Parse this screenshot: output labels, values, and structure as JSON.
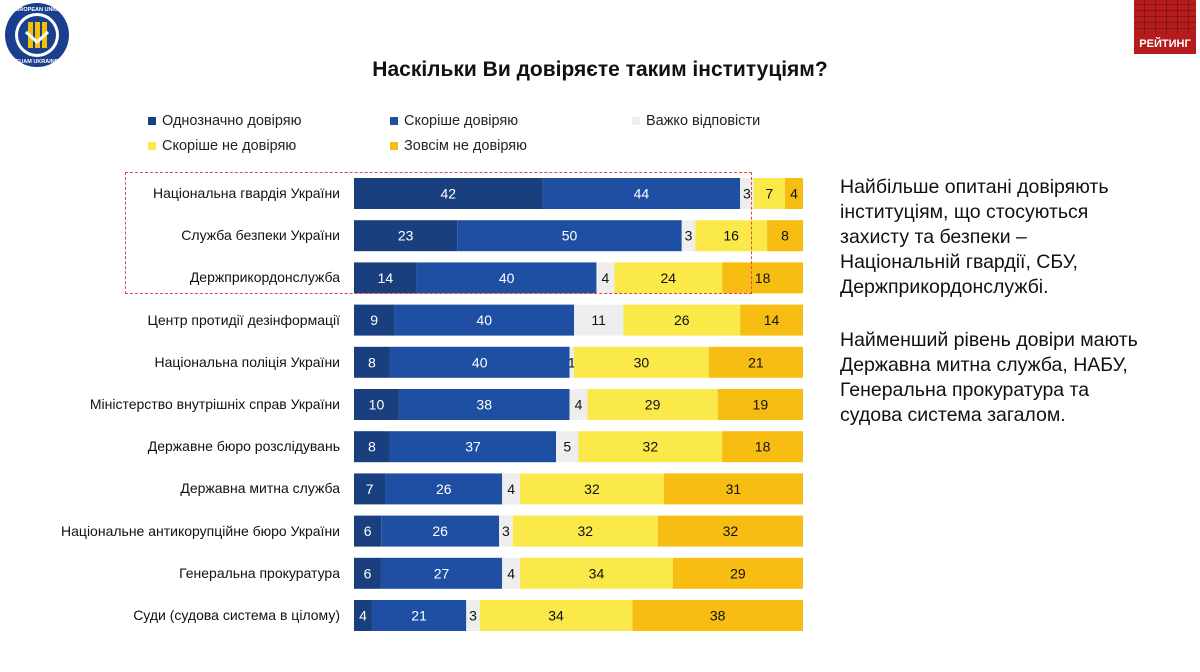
{
  "header": {
    "logo_text": "EUROPEAN UNION EUAM UKRAINE",
    "brand_label": "РЕЙТИНГ"
  },
  "chart_data": {
    "type": "bar",
    "orientation": "horizontal",
    "stacked": true,
    "percent": true,
    "title": "Наскільки Ви довіряєте таким інституціям?",
    "legend_placement": "top",
    "categories": [
      "Національна гвардія України",
      "Служба безпеки України",
      "Держприкордонслужба",
      "Центр протидії дезінформації",
      "Національна поліція України",
      "Міністерство внутрішніх справ України",
      "Державне бюро розслідувань",
      "Державна митна служба",
      "Національне антикорупційне бюро України",
      "Генеральна прокуратура",
      "Суди (судова система в цілому)"
    ],
    "series": [
      {
        "name": "Однозначно довіряю",
        "color": "#1a3f7f",
        "values": [
          42,
          23,
          14,
          9,
          8,
          10,
          8,
          7,
          6,
          6,
          4
        ]
      },
      {
        "name": "Скоріше довіряю",
        "color": "#1e4fa3",
        "values": [
          44,
          50,
          40,
          40,
          40,
          38,
          37,
          26,
          26,
          27,
          21
        ]
      },
      {
        "name": "Важко відповісти",
        "color": "#eeeeee",
        "values": [
          3,
          3,
          4,
          11,
          1,
          4,
          5,
          4,
          3,
          4,
          3
        ]
      },
      {
        "name": "Скоріше не довіряю",
        "color": "#fbe94a",
        "values": [
          7,
          16,
          24,
          26,
          30,
          29,
          32,
          32,
          32,
          34,
          34
        ]
      },
      {
        "name": "Зовсім не довіряю",
        "color": "#f7bd12",
        "values": [
          4,
          8,
          18,
          14,
          21,
          19,
          18,
          31,
          32,
          29,
          38
        ]
      }
    ],
    "xlim": [
      0,
      100
    ],
    "grid": false
  },
  "side_notes": [
    "Найбільше опитані довіряють інституціям, що стосуються захисту та безпеки – Національній гвардії, СБУ, Держприкордонслужбі.",
    "Найменший рівень довіри мають Державна митна служба, НАБУ, Генеральна прокуратура та судова система загалом."
  ]
}
